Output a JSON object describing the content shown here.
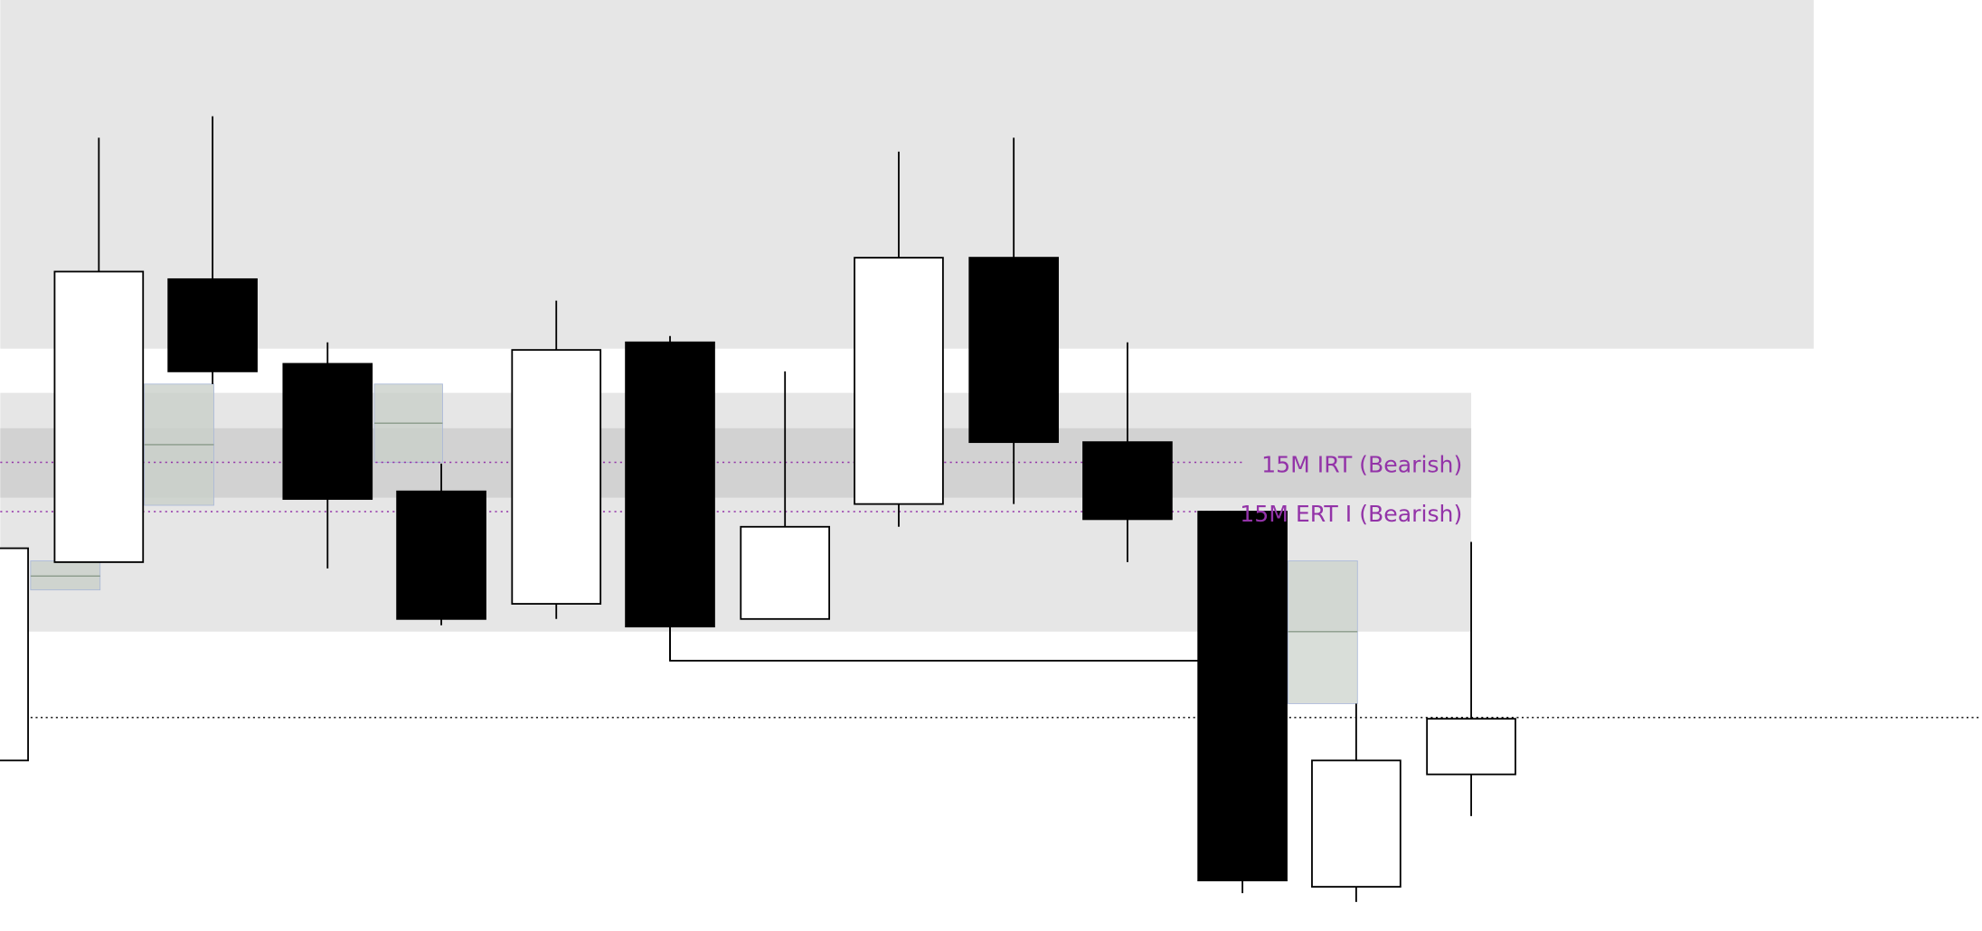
{
  "chart_data": {
    "type": "candlestick",
    "title": "",
    "xlabel": "",
    "ylabel": "",
    "grid": false,
    "ylim": [
      0,
      737
    ],
    "candles": [
      {
        "open": 303,
        "high": 303,
        "low": 135,
        "close": 135,
        "color": "white"
      },
      {
        "open": 292,
        "high": 628,
        "low": 292,
        "close": 522,
        "color": "white"
      },
      {
        "open": 516,
        "high": 645,
        "low": 433,
        "close": 443,
        "color": "black"
      },
      {
        "open": 449,
        "high": 466,
        "low": 287,
        "close": 342,
        "color": "black"
      },
      {
        "open": 348,
        "high": 370,
        "low": 242,
        "close": 247,
        "color": "black"
      },
      {
        "open": 259,
        "high": 499,
        "low": 247,
        "close": 460,
        "color": "white"
      },
      {
        "open": 466,
        "high": 471,
        "low": 214,
        "close": 241,
        "color": "black"
      },
      {
        "open": 247,
        "high": 443,
        "low": 247,
        "close": 320,
        "color": "white"
      },
      {
        "open": 338,
        "high": 617,
        "low": 320,
        "close": 533,
        "color": "white"
      },
      {
        "open": 533,
        "high": 628,
        "low": 338,
        "close": 387,
        "color": "black"
      },
      {
        "open": 387,
        "high": 466,
        "low": 292,
        "close": 326,
        "color": "black"
      },
      {
        "open": 332,
        "high": 332,
        "low": 30,
        "close": 40,
        "color": "black"
      },
      {
        "open": 35,
        "high": 180,
        "low": 23,
        "close": 135,
        "color": "white"
      },
      {
        "open": 124,
        "high": 308,
        "low": 91,
        "close": 168,
        "color": "white"
      }
    ],
    "levels": [
      {
        "label": "15M IRT (Bearish)",
        "price": 371,
        "color": "#9333a8",
        "style": "dotted"
      },
      {
        "label": "15M ERT I (Bearish)",
        "price": 332,
        "color": "#9333a8",
        "style": "dotted"
      },
      {
        "label": "",
        "price": 169,
        "color": "#000000",
        "style": "dotted"
      }
    ],
    "zones": [
      {
        "from": 461,
        "to": 737,
        "color": "#e6e6e6"
      },
      {
        "from": 237,
        "to": 426,
        "color": "#e6e6e6"
      },
      {
        "from": 343,
        "to": 398,
        "color": "#d2d2d2"
      }
    ]
  }
}
